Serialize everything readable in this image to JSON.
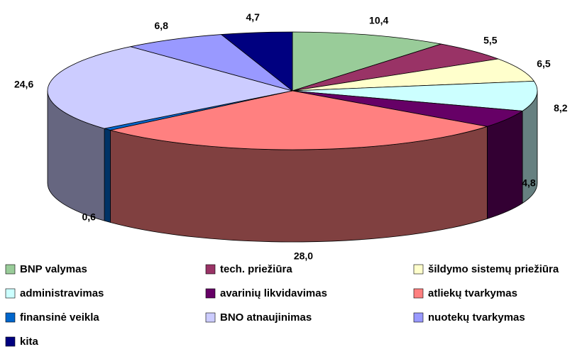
{
  "chart_data": {
    "type": "pie",
    "categories": [
      "BNP valymas",
      "tech. priežiūra",
      "šildymo sistemų priežiūra",
      "administravimas",
      "avarinių likvidavimas",
      "atliekų tvarkymas",
      "finansinė veikla",
      "BNO atnaujinimas",
      "nuotekų tvarkymas",
      "kita"
    ],
    "values": [
      10.4,
      5.5,
      6.5,
      8.2,
      4.8,
      28.0,
      0.6,
      24.6,
      6.8,
      4.7
    ],
    "value_labels": [
      "10,4",
      "5,5",
      "6,5",
      "8,2",
      "4,8",
      "28,0",
      "0,6",
      "24,6",
      "6,8",
      "4,7"
    ],
    "colors": [
      "#99cc99",
      "#993366",
      "#ffffcc",
      "#ccffff",
      "#660066",
      "#ff8080",
      "#0066cc",
      "#ccccff",
      "#9999ff",
      "#000080"
    ]
  }
}
